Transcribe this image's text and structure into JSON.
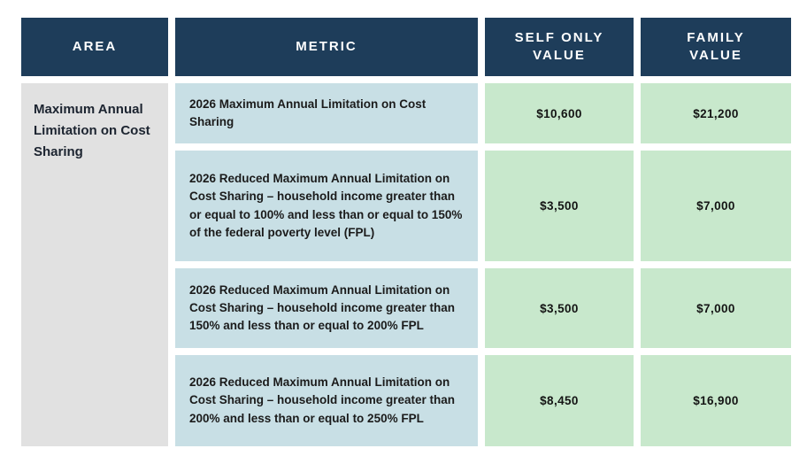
{
  "table": {
    "headers": [
      {
        "label": "AREA"
      },
      {
        "label": "METRIC"
      },
      {
        "label": "SELF ONLY VALUE"
      },
      {
        "label": "FAMILY VALUE"
      }
    ],
    "area_label": "Maximum Annual Limitation on Cost Sharing",
    "rows": [
      {
        "metric": "2026 Maximum Annual Limitation on Cost Sharing",
        "self_only": "$10,600",
        "family": "$21,200"
      },
      {
        "metric": "2026 Reduced Maximum Annual Limitation on Cost Sharing – household income greater than or equal to 100% and less than or equal to 150% of the federal poverty level (FPL)",
        "self_only": "$3,500",
        "family": "$7,000"
      },
      {
        "metric": "2026 Reduced Maximum Annual Limitation on Cost Sharing – household income greater than 150% and less than or equal to 200% FPL",
        "self_only": "$3,500",
        "family": "$7,000"
      },
      {
        "metric": "2026 Reduced Maximum Annual Limitation on Cost Sharing – household income greater than 200% and less than or equal to 250% FPL",
        "self_only": "$8,450",
        "family": "$16,900"
      }
    ],
    "colors": {
      "header_bg": "#1e3d5a",
      "header_text": "#ffffff",
      "area_bg": "#e1e1e1",
      "metric_bg": "#c8dfe5",
      "value_bg": "#c8e8cc",
      "body_text": "#1b1b1b",
      "page_bg": "#ffffff"
    }
  },
  "chart_data": {
    "type": "table",
    "title": "2026 Maximum Annual Limitation on Cost Sharing",
    "columns": [
      "AREA",
      "METRIC",
      "SELF ONLY VALUE",
      "FAMILY VALUE"
    ],
    "area": "Maximum Annual Limitation on Cost Sharing",
    "rows": [
      {
        "metric": "2026 Maximum Annual Limitation on Cost Sharing",
        "self_only_value": 10600,
        "family_value": 21200
      },
      {
        "metric": "2026 Reduced Maximum Annual Limitation on Cost Sharing – household income greater than or equal to 100% and less than or equal to 150% of the federal poverty level (FPL)",
        "self_only_value": 3500,
        "family_value": 7000
      },
      {
        "metric": "2026 Reduced Maximum Annual Limitation on Cost Sharing – household income greater than 150% and less than or equal to 200% FPL",
        "self_only_value": 3500,
        "family_value": 7000
      },
      {
        "metric": "2026 Reduced Maximum Annual Limitation on Cost Sharing – household income greater than 200% and less than or equal to 250% FPL",
        "self_only_value": 8450,
        "family_value": 16900
      }
    ],
    "value_unit": "USD"
  }
}
